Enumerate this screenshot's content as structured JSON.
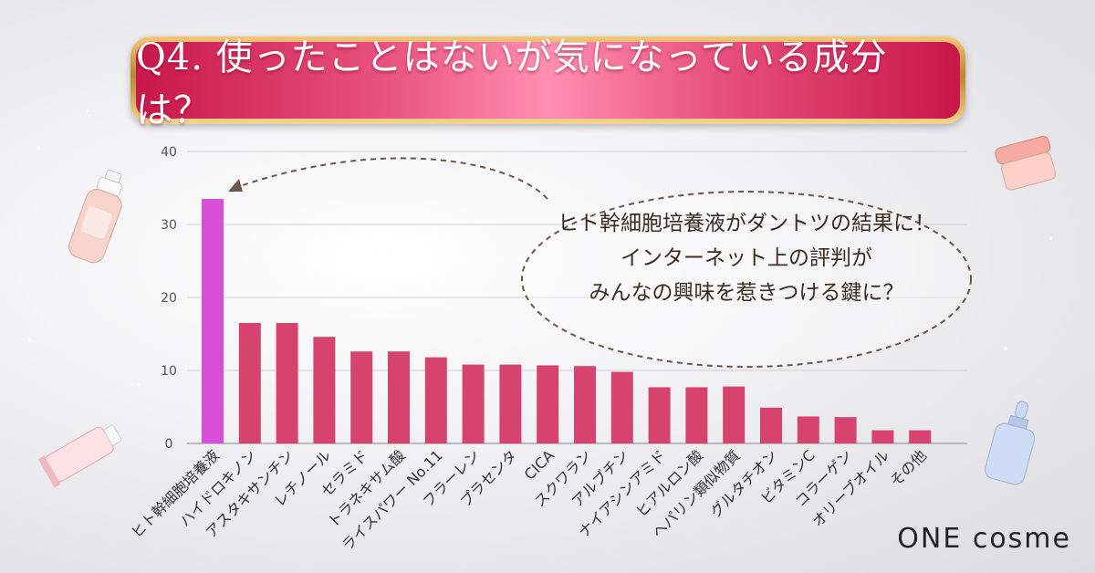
{
  "banner": {
    "title": "Q4. 使ったことはないが気になっている成分は？"
  },
  "callout": {
    "lines": [
      "ヒト幹細胞培養液がダントツの結果に！",
      "インターネット上の評判が",
      "みんなの興味を惹きつける鍵に？"
    ]
  },
  "logo": {
    "text": "ONE cosme"
  },
  "colors": {
    "bar": "#d6436f",
    "highlight": "#d64fd6",
    "banner": "#e0466f",
    "grid": "#cfcfd4"
  },
  "chart_data": {
    "type": "bar",
    "categories": [
      "ヒト幹細胞培養液",
      "ハイドロキノン",
      "アスタキサンチン",
      "レチノール",
      "セラミド",
      "トラネキサム酸",
      "ライスパワー No.11",
      "フラーレン",
      "プラセンタ",
      "CICA",
      "スクワラン",
      "アルブチン",
      "ナイアシンアミド",
      "ヒアルロン酸",
      "ヘパリン類似物質",
      "グルタチオン",
      "ビタミンC",
      "コラーゲン",
      "オリーブオイル",
      "その他"
    ],
    "values": [
      33.5,
      16.5,
      16.5,
      14.6,
      12.6,
      12.6,
      11.8,
      10.8,
      10.8,
      10.7,
      10.6,
      9.8,
      7.7,
      7.7,
      7.8,
      4.9,
      3.7,
      3.6,
      1.8,
      1.8
    ],
    "yticks": [
      0,
      10,
      20,
      30,
      40
    ],
    "ylim": [
      0,
      40
    ],
    "highlight_index": 0,
    "grid": true
  }
}
